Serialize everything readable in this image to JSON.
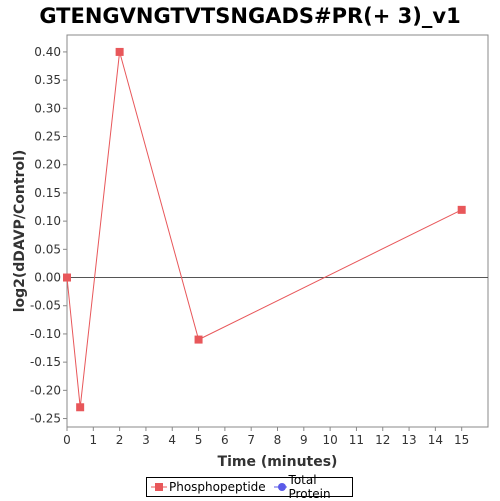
{
  "chart_data": {
    "type": "line",
    "title": "GTENGVNGTVTSNGADS#PR(+ 3)_v1",
    "xlabel": "Time (minutes)",
    "ylabel": "log2(dDAVP/Control)",
    "xlim": [
      0,
      16
    ],
    "ylim": [
      -0.265,
      0.43
    ],
    "x_ticks": [
      0,
      1,
      2,
      3,
      4,
      5,
      6,
      7,
      8,
      9,
      10,
      11,
      12,
      13,
      14,
      15
    ],
    "y_ticks": [
      0.4,
      0.35,
      0.3,
      0.25,
      0.2,
      0.15,
      0.1,
      0.05,
      0.0,
      -0.05,
      -0.1,
      -0.15,
      -0.2,
      -0.25
    ],
    "grid": false,
    "zero_line": true,
    "legend_position": "bottom",
    "series": [
      {
        "name": "Phosphopeptide",
        "color": "#e8575a",
        "marker": "square",
        "x": [
          0,
          0.5,
          2,
          5,
          15
        ],
        "y": [
          0.0,
          -0.23,
          0.4,
          -0.11,
          0.12
        ]
      },
      {
        "name": "Total Protein",
        "color": "#5a5ae8",
        "marker": "circle",
        "x": [],
        "y": []
      }
    ]
  }
}
